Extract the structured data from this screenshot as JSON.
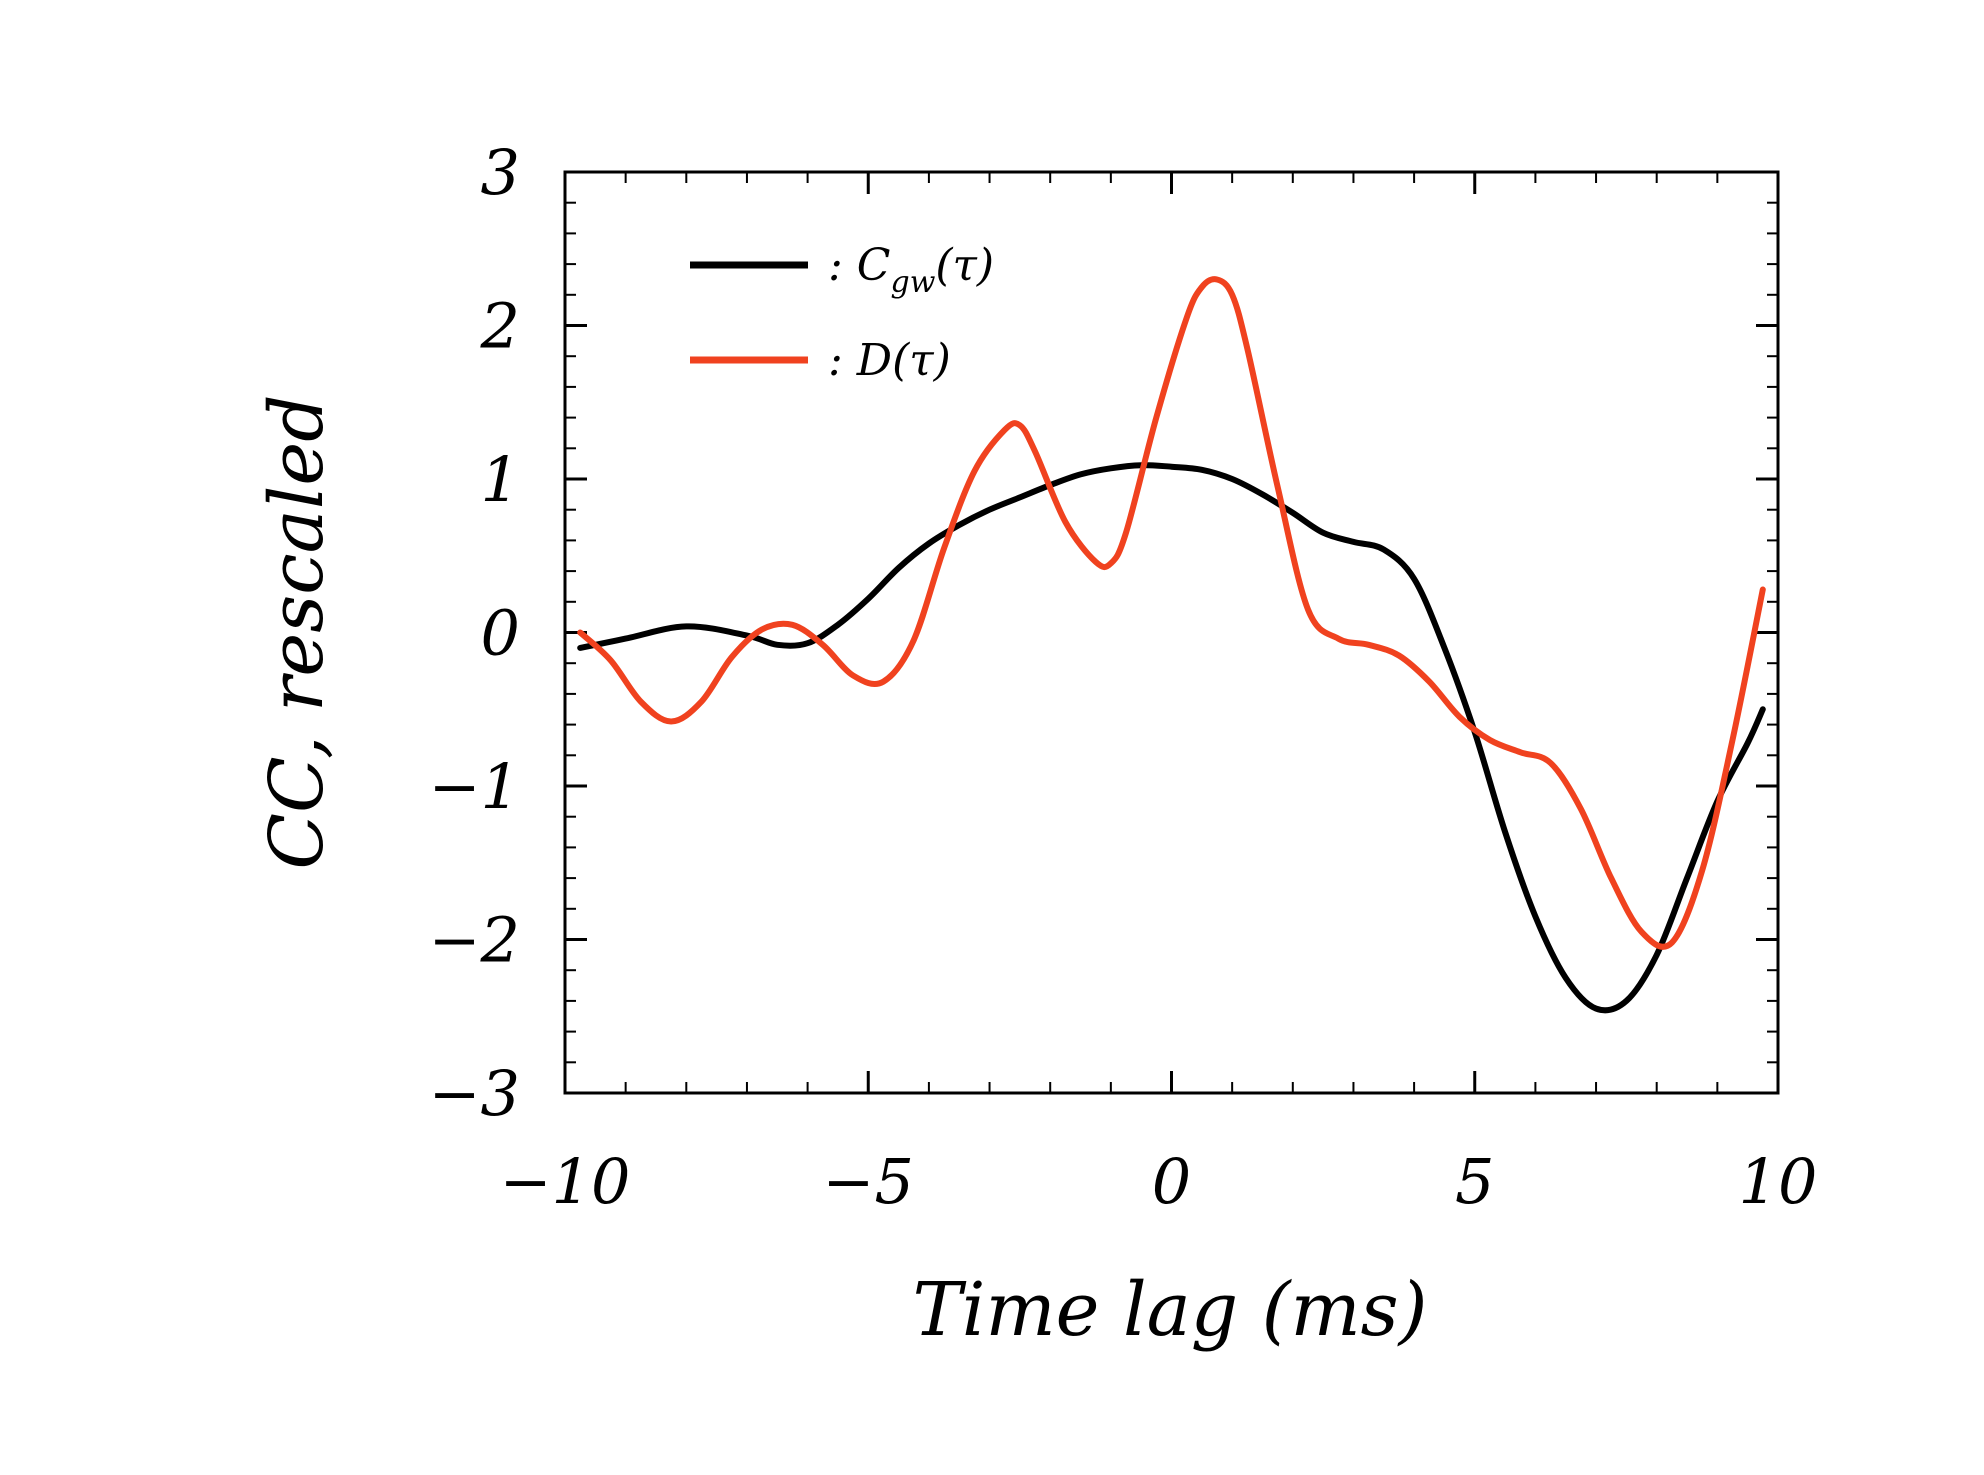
{
  "chart_data": {
    "type": "line",
    "xlabel": "Time lag (ms)",
    "ylabel": "CC, rescaled",
    "xlim": [
      -10,
      10
    ],
    "ylim": [
      -3,
      3
    ],
    "x_ticks": [
      {
        "value": -10,
        "label": "−10"
      },
      {
        "value": -5,
        "label": "−5"
      },
      {
        "value": 0,
        "label": "0"
      },
      {
        "value": 5,
        "label": "5"
      },
      {
        "value": 10,
        "label": "10"
      }
    ],
    "y_ticks": [
      {
        "value": -3,
        "label": "−3"
      },
      {
        "value": -2,
        "label": "−2"
      },
      {
        "value": -1,
        "label": "−1"
      },
      {
        "value": 0,
        "label": "0"
      },
      {
        "value": 1,
        "label": "1"
      },
      {
        "value": 2,
        "label": "2"
      },
      {
        "value": 3,
        "label": "3"
      }
    ],
    "legend_position": "top-left",
    "grid": false,
    "series": [
      {
        "name": ": C_gw(τ)",
        "legend": {
          "prefix": ": C",
          "subscript": "gw",
          "suffix": "(τ)"
        },
        "color": "#000000",
        "x": [
          -9.75,
          -9.0,
          -8.0,
          -7.0,
          -6.5,
          -6.0,
          -5.5,
          -5.0,
          -4.5,
          -4.0,
          -3.5,
          -3.0,
          -2.5,
          -2.0,
          -1.5,
          -1.0,
          -0.5,
          0.0,
          0.5,
          1.0,
          1.5,
          2.0,
          2.5,
          3.0,
          3.5,
          4.0,
          4.5,
          5.0,
          5.5,
          6.0,
          6.5,
          7.0,
          7.5,
          8.0,
          8.5,
          9.0,
          9.5,
          9.75
        ],
        "y": [
          -0.1,
          -0.04,
          0.04,
          -0.02,
          -0.08,
          -0.07,
          0.05,
          0.22,
          0.42,
          0.58,
          0.7,
          0.8,
          0.88,
          0.96,
          1.03,
          1.07,
          1.09,
          1.08,
          1.06,
          1.0,
          0.9,
          0.78,
          0.65,
          0.59,
          0.54,
          0.35,
          -0.1,
          -0.65,
          -1.3,
          -1.85,
          -2.25,
          -2.45,
          -2.4,
          -2.1,
          -1.6,
          -1.1,
          -0.72,
          -0.5
        ]
      },
      {
        "name": ": D(τ)",
        "legend": {
          "prefix": ": D",
          "subscript": "",
          "suffix": "(τ)"
        },
        "color": "#f0421f",
        "x": [
          -9.75,
          -9.25,
          -8.75,
          -8.25,
          -7.75,
          -7.25,
          -6.75,
          -6.25,
          -5.75,
          -5.25,
          -4.75,
          -4.25,
          -3.75,
          -3.25,
          -2.75,
          -2.5,
          -2.25,
          -1.75,
          -1.25,
          -1.0,
          -0.75,
          -0.25,
          0.25,
          0.5,
          0.75,
          1.0,
          1.25,
          1.75,
          2.25,
          2.75,
          3.25,
          3.75,
          4.25,
          4.75,
          5.25,
          5.75,
          6.25,
          6.75,
          7.25,
          7.75,
          8.25,
          8.75,
          9.25,
          9.75
        ],
        "y": [
          0.0,
          -0.18,
          -0.45,
          -0.58,
          -0.45,
          -0.16,
          0.02,
          0.05,
          -0.08,
          -0.28,
          -0.32,
          -0.05,
          0.55,
          1.05,
          1.32,
          1.35,
          1.18,
          0.72,
          0.46,
          0.45,
          0.65,
          1.4,
          2.05,
          2.25,
          2.3,
          2.2,
          1.85,
          0.95,
          0.15,
          -0.04,
          -0.08,
          -0.15,
          -0.32,
          -0.55,
          -0.7,
          -0.78,
          -0.85,
          -1.15,
          -1.6,
          -1.95,
          -2.02,
          -1.55,
          -0.7,
          0.28
        ]
      }
    ]
  }
}
